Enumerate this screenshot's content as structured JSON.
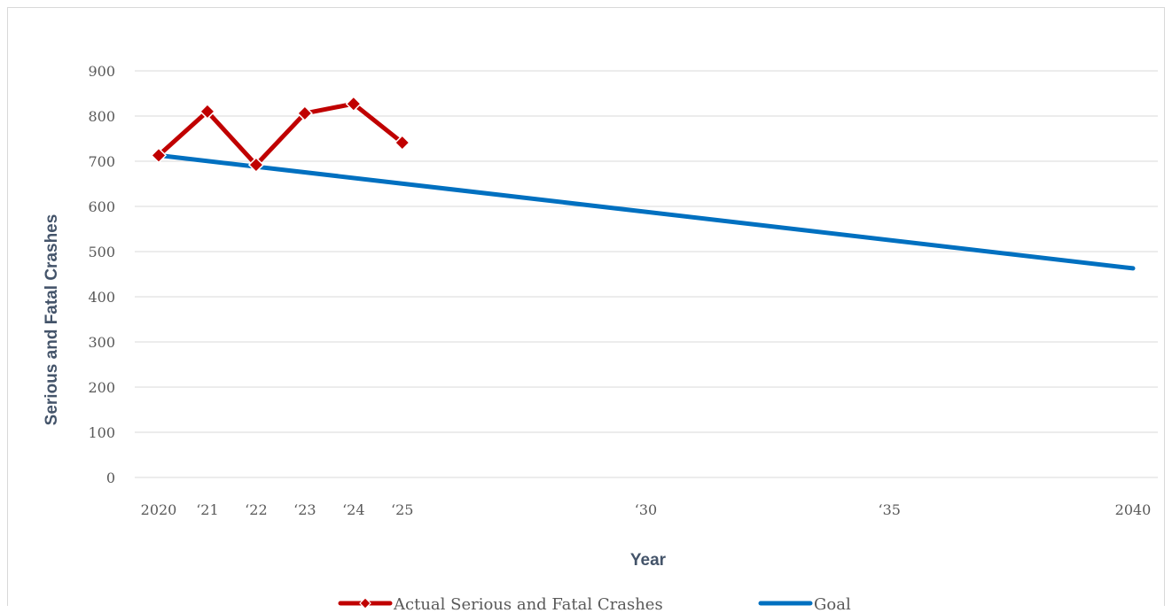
{
  "chart_data": {
    "type": "line",
    "title": "",
    "xlabel": "Year",
    "ylabel": "Serious and Fatal Crashes",
    "ylim": [
      0,
      900
    ],
    "yticks": [
      0,
      100,
      200,
      300,
      400,
      500,
      600,
      700,
      800,
      900
    ],
    "xlim": [
      2020,
      2040
    ],
    "xticks": [
      {
        "value": 2020,
        "label": "2020"
      },
      {
        "value": 2021,
        "label": "‘21"
      },
      {
        "value": 2022,
        "label": "‘22"
      },
      {
        "value": 2023,
        "label": "‘23"
      },
      {
        "value": 2024,
        "label": "‘24"
      },
      {
        "value": 2025,
        "label": "‘25"
      },
      {
        "value": 2030,
        "label": "‘30"
      },
      {
        "value": 2035,
        "label": "‘35"
      },
      {
        "value": 2040,
        "label": "2040"
      }
    ],
    "grid": true,
    "legend_position": "bottom",
    "series": [
      {
        "name": "Actual Serious and Fatal Crashes",
        "color": "#c00000",
        "marker": "diamond",
        "x": [
          2020,
          2021,
          2022,
          2023,
          2024,
          2025
        ],
        "values": [
          713,
          810,
          692,
          806,
          827,
          741
        ]
      },
      {
        "name": "Goal",
        "color": "#0070c0",
        "marker": "none",
        "x": [
          2020,
          2040
        ],
        "values": [
          713,
          463
        ]
      }
    ]
  }
}
